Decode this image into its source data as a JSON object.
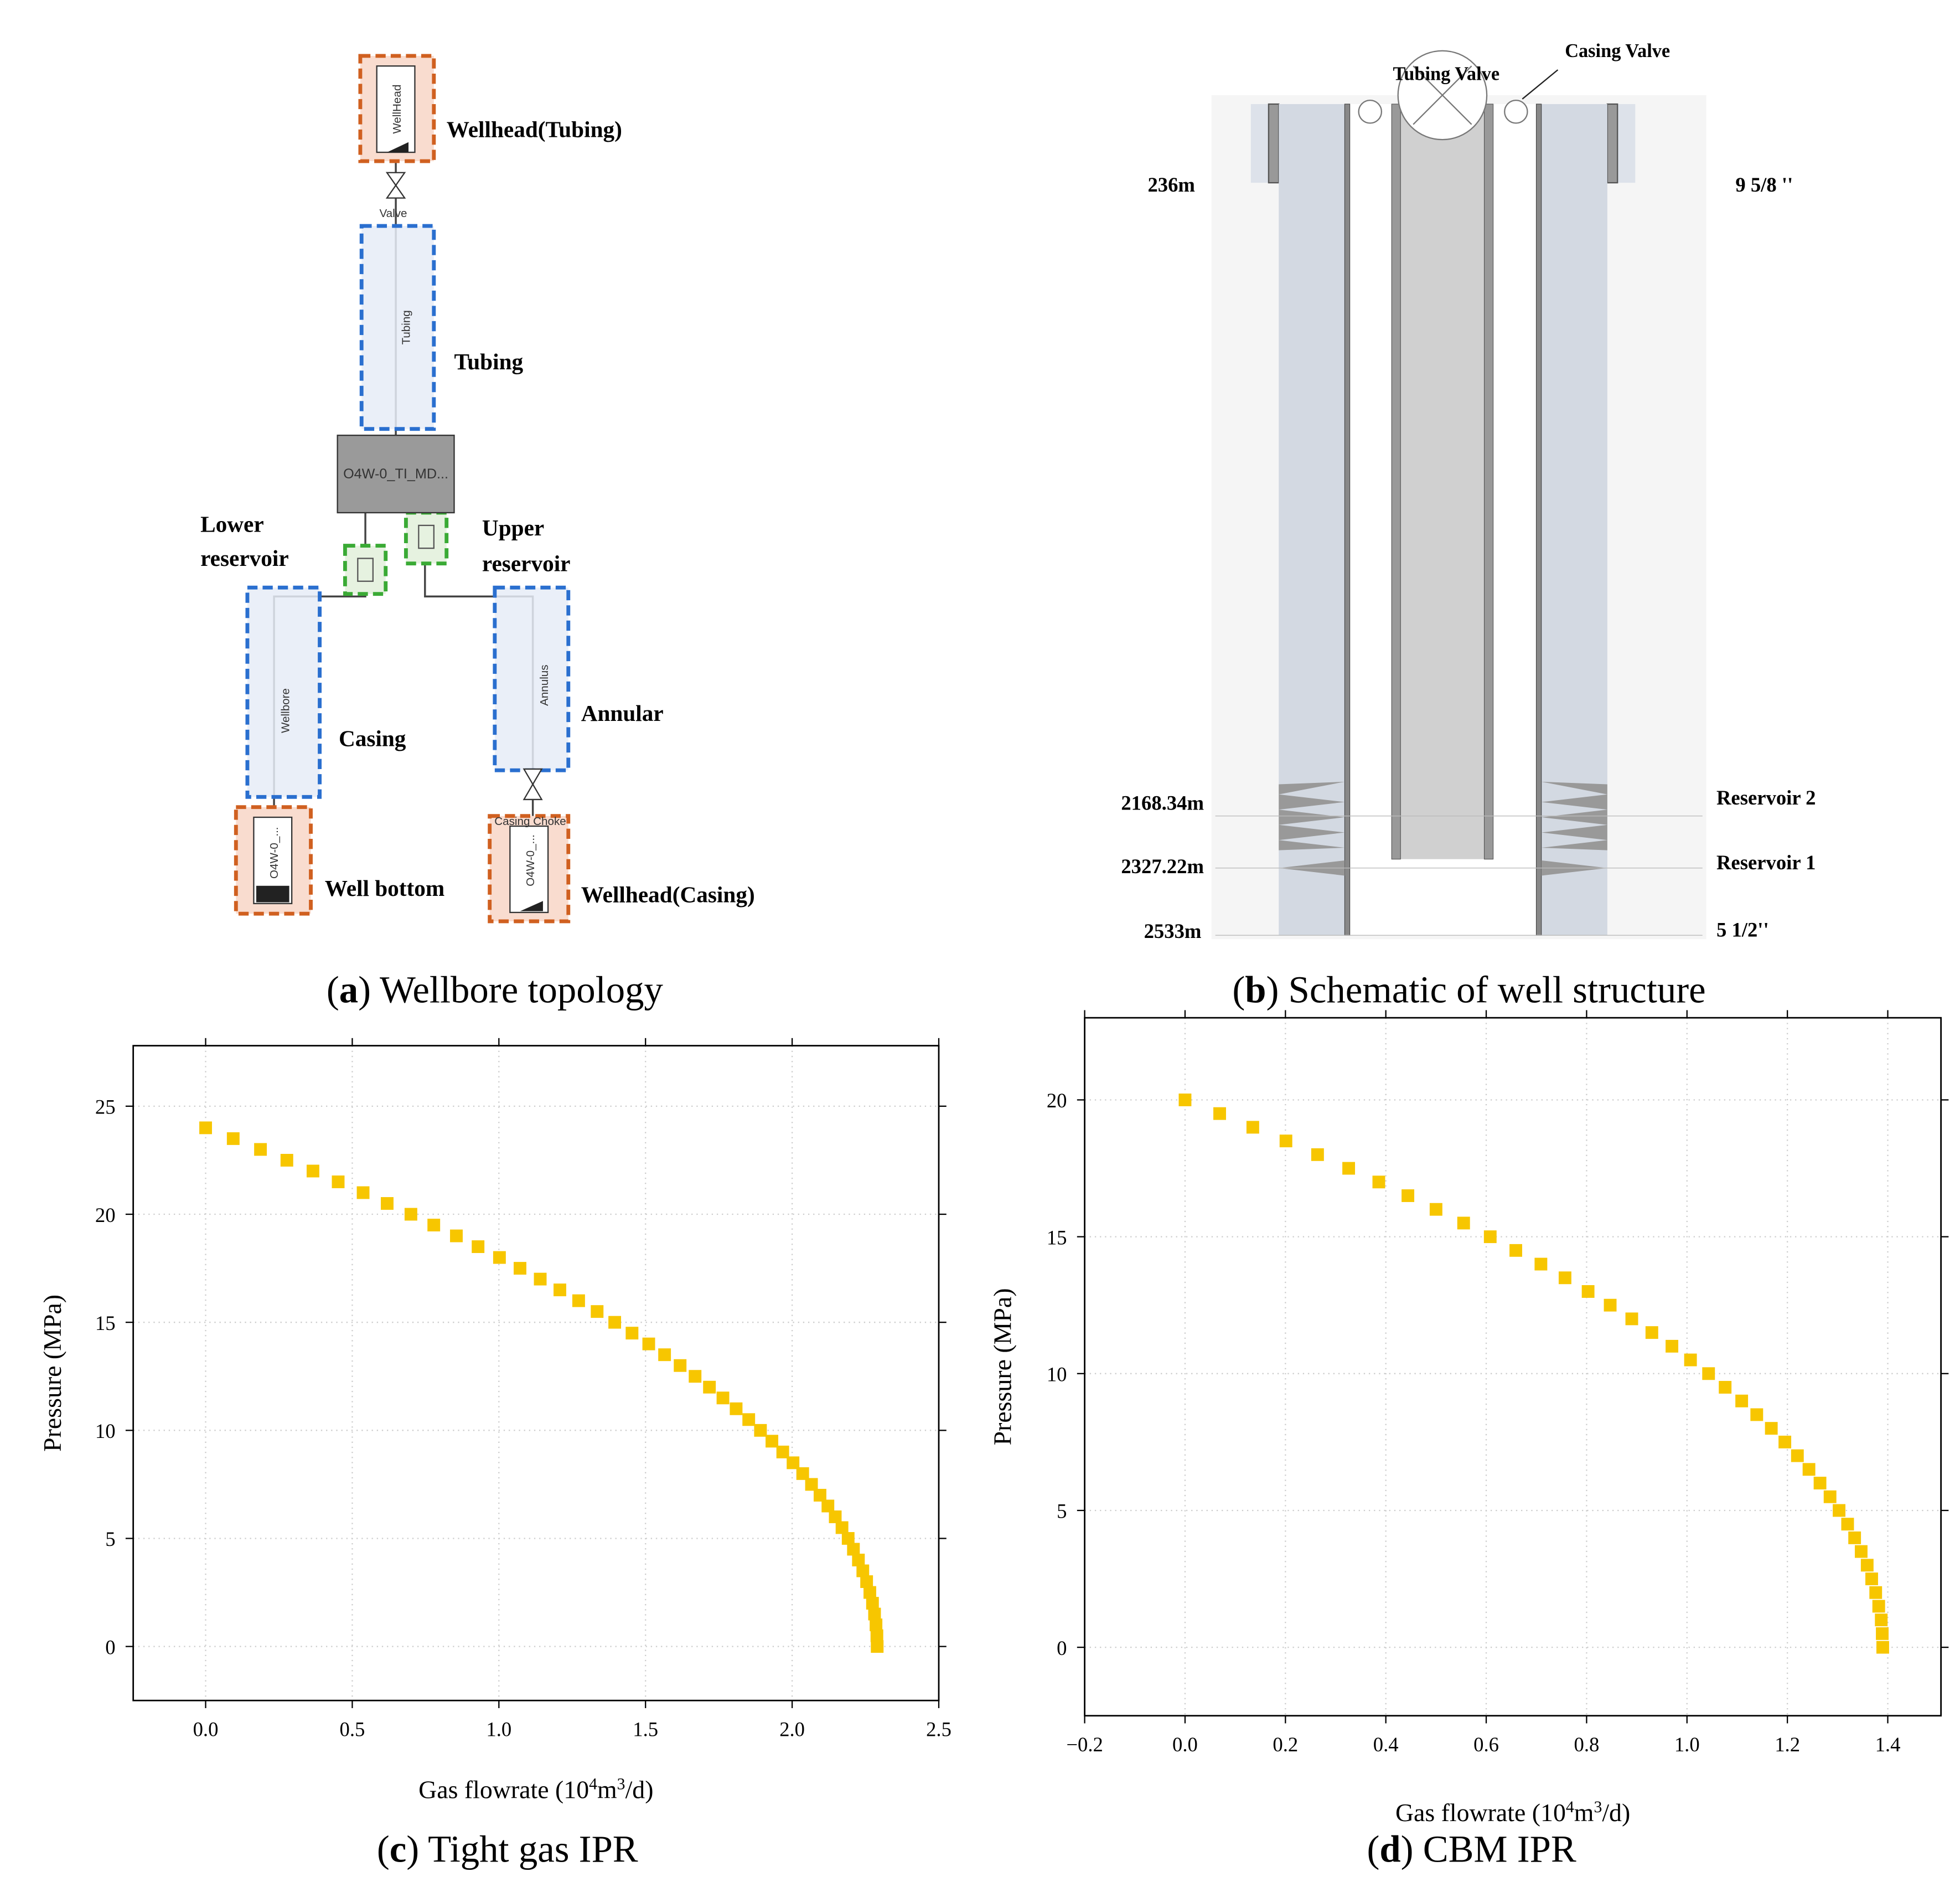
{
  "topology": {
    "wellhead_tubing": "Wellhead(Tubing)",
    "tubing": "Tubing",
    "lower_reservoir": [
      "Lower",
      "reservoir"
    ],
    "upper_reservoir": [
      "Upper",
      "reservoir"
    ],
    "casing": "Casing",
    "annular": "Annular",
    "well_bottom": "Well bottom",
    "wellhead_casing": "Wellhead(Casing)",
    "inner": {
      "wellhead": "WellHead",
      "valve": "Valve",
      "tubing": "Tubing",
      "block": "O4W-0_TI_MD...",
      "wellbore": "Wellbore",
      "annulus": "Annulus",
      "bottom": "O4W-0_...",
      "casing_head": "O4W-0_...",
      "choke": "Casing Choke"
    },
    "caption": [
      "(",
      "a",
      ") Wellbore topology"
    ]
  },
  "structure": {
    "tubing_valve": "Tubing Valve",
    "casing_valve": "Casing Valve",
    "depths": [
      "236m",
      "2168.34m",
      "2327.22m",
      "2533m"
    ],
    "right_labels": [
      "9 5/8 ''",
      "Reservoir 2",
      "Reservoir 1",
      "5 1/2''"
    ],
    "caption": [
      "(",
      "b",
      ") Schematic of well structure"
    ]
  },
  "chart_data": [
    {
      "type": "scatter",
      "caption": [
        "(",
        "c",
        ") Tight gas IPR"
      ],
      "x_label": [
        "Gas flowrate (10",
        "4",
        "m",
        "3",
        "/d)"
      ],
      "y_label": "Pressure (MPa)",
      "color": "#f7c600",
      "grid": true,
      "xlim": [
        -0.247,
        2.5
      ],
      "ylim": [
        -2.5,
        27.8
      ],
      "xticks": [
        {
          "value": 0,
          "label": "0.0"
        },
        0.5,
        {
          "value": 1,
          "label": "1.0"
        },
        1.5,
        {
          "value": 2,
          "label": "2.0"
        },
        2.5
      ],
      "yticks": [
        0,
        5,
        10,
        15,
        20,
        25
      ],
      "x": [
        0,
        0.094,
        0.187,
        0.277,
        0.366,
        0.452,
        0.537,
        0.619,
        0.7,
        0.778,
        0.855,
        0.929,
        1.002,
        1.072,
        1.141,
        1.208,
        1.272,
        1.335,
        1.395,
        1.454,
        1.511,
        1.565,
        1.618,
        1.669,
        1.718,
        1.764,
        1.809,
        1.852,
        1.892,
        1.931,
        1.968,
        2.003,
        2.036,
        2.066,
        2.095,
        2.122,
        2.147,
        2.17,
        2.191,
        2.209,
        2.226,
        2.241,
        2.254,
        2.265,
        2.274,
        2.281,
        2.286,
        2.289,
        2.29
      ],
      "values": [
        24,
        23.5,
        23,
        22.5,
        22,
        21.5,
        21,
        20.5,
        20,
        19.5,
        19,
        18.5,
        18,
        17.5,
        17,
        16.5,
        16,
        15.5,
        15,
        14.5,
        14,
        13.5,
        13,
        12.5,
        12,
        11.5,
        11,
        10.5,
        10,
        9.5,
        9,
        8.5,
        8,
        7.5,
        7,
        6.5,
        6,
        5.5,
        5,
        4.5,
        4,
        3.5,
        3,
        2.5,
        2,
        1.5,
        1,
        0.5,
        0
      ]
    },
    {
      "type": "scatter",
      "caption": [
        "(",
        "d",
        ") CBM IPR"
      ],
      "x_label": [
        "Gas flowrate (10",
        "4",
        "m",
        "3",
        "/d)"
      ],
      "y_label": "Pressure (MPa)",
      "color": "#f7c600",
      "grid": true,
      "xlim": [
        -0.2,
        1.506
      ],
      "ylim": [
        -2.5,
        23
      ],
      "xticks": [
        {
          "value": -0.2,
          "label": "−0.2"
        },
        {
          "value": 0,
          "label": "0.0"
        },
        0.2,
        0.4,
        0.6,
        0.8,
        {
          "value": 1,
          "label": "1.0"
        },
        1.2,
        1.4
      ],
      "yticks": [
        0,
        5,
        10,
        15,
        20
      ],
      "x": [
        0,
        0.069,
        0.135,
        0.201,
        0.264,
        0.326,
        0.386,
        0.444,
        0.5,
        0.555,
        0.608,
        0.659,
        0.709,
        0.757,
        0.803,
        0.847,
        0.89,
        0.93,
        0.97,
        1.007,
        1.043,
        1.076,
        1.109,
        1.139,
        1.168,
        1.195,
        1.22,
        1.243,
        1.265,
        1.285,
        1.303,
        1.32,
        1.334,
        1.347,
        1.359,
        1.368,
        1.376,
        1.382,
        1.387,
        1.389,
        1.39
      ],
      "values": [
        20,
        19.5,
        19,
        18.5,
        18,
        17.5,
        17,
        16.5,
        16,
        15.5,
        15,
        14.5,
        14,
        13.5,
        13,
        12.5,
        12,
        11.5,
        11,
        10.5,
        10,
        9.5,
        9,
        8.5,
        8,
        7.5,
        7,
        6.5,
        6,
        5.5,
        5,
        4.5,
        4,
        3.5,
        3,
        2.5,
        2,
        1.5,
        1,
        0.5,
        0
      ]
    }
  ]
}
